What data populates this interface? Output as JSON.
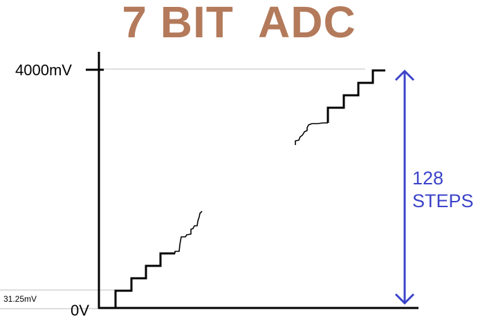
{
  "title": "7 BIT  ADC",
  "labels": {
    "top_voltage": "4000mV",
    "step_voltage": "31.25mV",
    "zero_voltage": "0V"
  },
  "steps": {
    "count": "128",
    "word": "STEPS"
  },
  "colors": {
    "title": "#b37a5b",
    "arrow": "#3b43c9",
    "axis": "#000000",
    "guide": "#bdbdbd"
  }
}
